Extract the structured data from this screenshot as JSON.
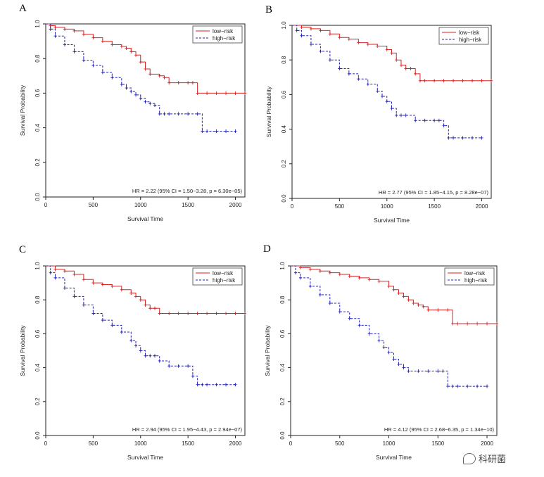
{
  "figure": {
    "panels": [
      {
        "letter": "A"
      },
      {
        "letter": "B"
      },
      {
        "letter": "C"
      },
      {
        "letter": "D"
      }
    ],
    "watermark": "科研菌"
  },
  "colors": {
    "low_risk": "#d42626",
    "high_risk": "#2323b8",
    "axis": "#222222"
  },
  "chart_data": [
    {
      "type": "line",
      "subtype": "kaplan-meier",
      "xlabel": "Survival Time",
      "ylabel": "Survival Probability",
      "xlim": [
        0,
        2100
      ],
      "ylim": [
        0,
        1
      ],
      "xticks": [
        0,
        500,
        1000,
        1500,
        2000
      ],
      "yticks": [
        0.0,
        0.2,
        0.4,
        0.6,
        0.8,
        1.0
      ],
      "ytick_labels": [
        "0.0",
        "0.2",
        "0.4",
        "0.6",
        "0.8",
        "1.0"
      ],
      "legend": [
        "low−risk",
        "high−risk"
      ],
      "legend_position": "top-right",
      "annotation": "HR = 2.22 (95% CI = 1.50−3.28, p = 6.30e−05)",
      "series": [
        {
          "name": "low−risk",
          "style": "solid",
          "x": [
            0,
            50,
            100,
            200,
            300,
            400,
            500,
            600,
            700,
            800,
            850,
            900,
            950,
            1000,
            1050,
            1100,
            1200,
            1250,
            1300,
            1400,
            1500,
            1550,
            1600,
            1700,
            1800,
            1900,
            2000,
            2100
          ],
          "y": [
            1.0,
            0.99,
            0.98,
            0.97,
            0.96,
            0.94,
            0.92,
            0.9,
            0.88,
            0.87,
            0.86,
            0.84,
            0.82,
            0.78,
            0.74,
            0.71,
            0.7,
            0.69,
            0.66,
            0.66,
            0.66,
            0.66,
            0.6,
            0.6,
            0.6,
            0.6,
            0.6,
            0.6
          ]
        },
        {
          "name": "high−risk",
          "style": "dashed",
          "x": [
            0,
            50,
            100,
            200,
            300,
            400,
            500,
            600,
            700,
            800,
            850,
            900,
            950,
            1000,
            1050,
            1100,
            1150,
            1200,
            1250,
            1300,
            1400,
            1500,
            1600,
            1650,
            1700,
            1800,
            1900,
            2000
          ],
          "y": [
            1.0,
            0.97,
            0.93,
            0.88,
            0.84,
            0.79,
            0.76,
            0.72,
            0.69,
            0.65,
            0.63,
            0.61,
            0.59,
            0.57,
            0.55,
            0.54,
            0.53,
            0.48,
            0.48,
            0.48,
            0.48,
            0.48,
            0.48,
            0.38,
            0.38,
            0.38,
            0.38,
            0.38
          ]
        }
      ]
    },
    {
      "type": "line",
      "subtype": "kaplan-meier",
      "xlabel": "Survival Time",
      "ylabel": "Survival Probability",
      "xlim": [
        0,
        2100
      ],
      "ylim": [
        0,
        1
      ],
      "xticks": [
        0,
        500,
        1000,
        1500,
        2000
      ],
      "yticks": [
        0.0,
        0.2,
        0.4,
        0.6,
        0.8,
        1.0
      ],
      "ytick_labels": [
        "0.0",
        "0.2",
        "0.4",
        "0.6",
        "0.8",
        "1.0"
      ],
      "legend": [
        "low−risk",
        "high−risk"
      ],
      "legend_position": "top-right",
      "annotation": "HR = 2.77 (95% CI = 1.85−4.15, p = 8.28e−07)",
      "series": [
        {
          "name": "low−risk",
          "style": "solid",
          "x": [
            0,
            100,
            200,
            300,
            400,
            500,
            600,
            700,
            800,
            900,
            1000,
            1050,
            1100,
            1150,
            1200,
            1250,
            1300,
            1350,
            1400,
            1500,
            1600,
            1700,
            1800,
            1900,
            2000,
            2100
          ],
          "y": [
            1.0,
            0.99,
            0.98,
            0.97,
            0.95,
            0.93,
            0.92,
            0.9,
            0.89,
            0.88,
            0.86,
            0.84,
            0.8,
            0.77,
            0.75,
            0.75,
            0.72,
            0.68,
            0.68,
            0.68,
            0.68,
            0.68,
            0.68,
            0.68,
            0.68,
            0.68
          ]
        },
        {
          "name": "high−risk",
          "style": "dashed",
          "x": [
            0,
            50,
            100,
            200,
            300,
            400,
            500,
            600,
            700,
            800,
            900,
            950,
            1000,
            1050,
            1100,
            1150,
            1200,
            1300,
            1400,
            1500,
            1550,
            1600,
            1650,
            1700,
            1800,
            1900,
            2000
          ],
          "y": [
            1.0,
            0.97,
            0.94,
            0.89,
            0.85,
            0.8,
            0.75,
            0.72,
            0.69,
            0.66,
            0.62,
            0.59,
            0.56,
            0.52,
            0.48,
            0.48,
            0.48,
            0.45,
            0.45,
            0.45,
            0.45,
            0.42,
            0.35,
            0.35,
            0.35,
            0.35,
            0.35
          ]
        }
      ]
    },
    {
      "type": "line",
      "subtype": "kaplan-meier",
      "xlabel": "Survival Time",
      "ylabel": "Survival Probability",
      "xlim": [
        0,
        2100
      ],
      "ylim": [
        0,
        1
      ],
      "xticks": [
        0,
        500,
        1000,
        1500,
        2000
      ],
      "yticks": [
        0.0,
        0.2,
        0.4,
        0.6,
        0.8,
        1.0
      ],
      "ytick_labels": [
        "0.0",
        "0.2",
        "0.4",
        "0.6",
        "0.8",
        "1.0"
      ],
      "legend": [
        "low−risk",
        "high−risk"
      ],
      "legend_position": "top-right",
      "annotation": "HR = 2.94 (95% CI = 1.95−4.43, p = 2.94e−07)",
      "series": [
        {
          "name": "low−risk",
          "style": "solid",
          "x": [
            0,
            100,
            200,
            300,
            400,
            500,
            600,
            700,
            800,
            900,
            950,
            1000,
            1050,
            1100,
            1150,
            1200,
            1300,
            1400,
            1500,
            1600,
            1700,
            1800,
            1900,
            2000,
            2100
          ],
          "y": [
            1.0,
            0.98,
            0.97,
            0.95,
            0.92,
            0.9,
            0.89,
            0.88,
            0.86,
            0.84,
            0.82,
            0.8,
            0.77,
            0.75,
            0.75,
            0.72,
            0.72,
            0.72,
            0.72,
            0.72,
            0.72,
            0.72,
            0.72,
            0.72,
            0.72
          ]
        },
        {
          "name": "high−risk",
          "style": "dashed",
          "x": [
            0,
            50,
            100,
            200,
            300,
            400,
            500,
            600,
            700,
            800,
            900,
            950,
            1000,
            1050,
            1100,
            1150,
            1200,
            1300,
            1400,
            1500,
            1550,
            1600,
            1650,
            1700,
            1800,
            1900,
            2000
          ],
          "y": [
            1.0,
            0.96,
            0.93,
            0.87,
            0.82,
            0.77,
            0.72,
            0.68,
            0.65,
            0.61,
            0.56,
            0.53,
            0.5,
            0.47,
            0.47,
            0.47,
            0.44,
            0.41,
            0.41,
            0.41,
            0.35,
            0.3,
            0.3,
            0.3,
            0.3,
            0.3,
            0.3
          ]
        }
      ]
    },
    {
      "type": "line",
      "subtype": "kaplan-meier",
      "xlabel": "Survival Time",
      "ylabel": "Survival Probability",
      "xlim": [
        0,
        2100
      ],
      "ylim": [
        0,
        1
      ],
      "xticks": [
        0,
        500,
        1000,
        1500,
        2000
      ],
      "yticks": [
        0.0,
        0.2,
        0.4,
        0.6,
        0.8,
        1.0
      ],
      "ytick_labels": [
        "0.0",
        "0.2",
        "0.4",
        "0.6",
        "0.8",
        "1.0"
      ],
      "legend": [
        "low−risk",
        "high−risk"
      ],
      "legend_position": "top-right",
      "annotation": "HR = 4.12 (95% CI = 2.68−6.35, p = 1.34e−10)",
      "series": [
        {
          "name": "low−risk",
          "style": "solid",
          "x": [
            0,
            100,
            200,
            300,
            400,
            500,
            600,
            700,
            800,
            900,
            1000,
            1050,
            1100,
            1150,
            1200,
            1250,
            1300,
            1350,
            1400,
            1500,
            1600,
            1650,
            1700,
            1800,
            1900,
            2000,
            2100
          ],
          "y": [
            1.0,
            0.99,
            0.98,
            0.97,
            0.96,
            0.95,
            0.94,
            0.93,
            0.92,
            0.91,
            0.88,
            0.86,
            0.84,
            0.82,
            0.8,
            0.78,
            0.77,
            0.76,
            0.74,
            0.74,
            0.74,
            0.66,
            0.66,
            0.66,
            0.66,
            0.66,
            0.66
          ]
        },
        {
          "name": "high−risk",
          "style": "dashed",
          "x": [
            0,
            50,
            100,
            200,
            300,
            400,
            500,
            600,
            700,
            800,
            900,
            950,
            1000,
            1050,
            1100,
            1150,
            1200,
            1300,
            1400,
            1500,
            1550,
            1600,
            1650,
            1700,
            1800,
            1900,
            2000
          ],
          "y": [
            1.0,
            0.96,
            0.93,
            0.88,
            0.83,
            0.78,
            0.73,
            0.69,
            0.65,
            0.6,
            0.56,
            0.52,
            0.49,
            0.45,
            0.42,
            0.4,
            0.38,
            0.38,
            0.38,
            0.38,
            0.38,
            0.29,
            0.29,
            0.29,
            0.29,
            0.29,
            0.29
          ]
        }
      ]
    }
  ]
}
